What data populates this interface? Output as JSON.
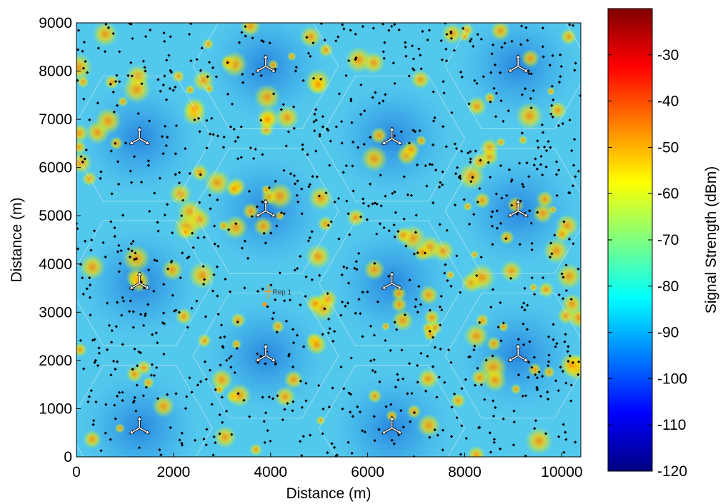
{
  "chart_data": [
    {
      "type": "heatmap",
      "title": "",
      "xlabel": "Distance (m)",
      "ylabel": "Distance (m)",
      "xlim": [
        0,
        10392
      ],
      "ylim": [
        0,
        9000
      ],
      "xticks": [
        "0",
        "2000",
        "4000",
        "6000",
        "8000",
        "10000"
      ],
      "xtick_values": [
        0,
        2000,
        4000,
        6000,
        8000,
        10000
      ],
      "yticks": [
        "0",
        "1000",
        "2000",
        "3000",
        "4000",
        "5000",
        "6000",
        "7000",
        "8000",
        "9000"
      ],
      "ytick_values": [
        0,
        1000,
        2000,
        3000,
        4000,
        5000,
        6000,
        7000,
        8000,
        9000
      ],
      "colorbar": {
        "label": "Signal Strength (dBm)",
        "range": [
          -120,
          -20
        ],
        "ticks": [
          "-30",
          "-40",
          "-50",
          "-60",
          "-70",
          "-80",
          "-90",
          "-100",
          "-110",
          "-120"
        ],
        "tick_values": [
          -30,
          -40,
          -50,
          -60,
          -70,
          -80,
          -90,
          -100,
          -110,
          -120
        ],
        "colormap": "jet"
      },
      "base_stations": [
        {
          "x": 1300,
          "y": 600
        },
        {
          "x": 6500,
          "y": 600
        },
        {
          "x": 3900,
          "y": 2100
        },
        {
          "x": 9100,
          "y": 2100
        },
        {
          "x": 1300,
          "y": 3600
        },
        {
          "x": 6500,
          "y": 3600
        },
        {
          "x": 3900,
          "y": 5100
        },
        {
          "x": 9100,
          "y": 5100
        },
        {
          "x": 1300,
          "y": 6600
        },
        {
          "x": 6500,
          "y": 6600
        },
        {
          "x": 3900,
          "y": 8100
        },
        {
          "x": 9100,
          "y": 8100
        }
      ],
      "relay": {
        "label": "Rep 1",
        "x": 3950,
        "y": 3430
      },
      "colors": {
        "marker": "#000000",
        "base_station_arrow": "#ffffff",
        "relay": "#ff9900"
      }
    }
  ]
}
